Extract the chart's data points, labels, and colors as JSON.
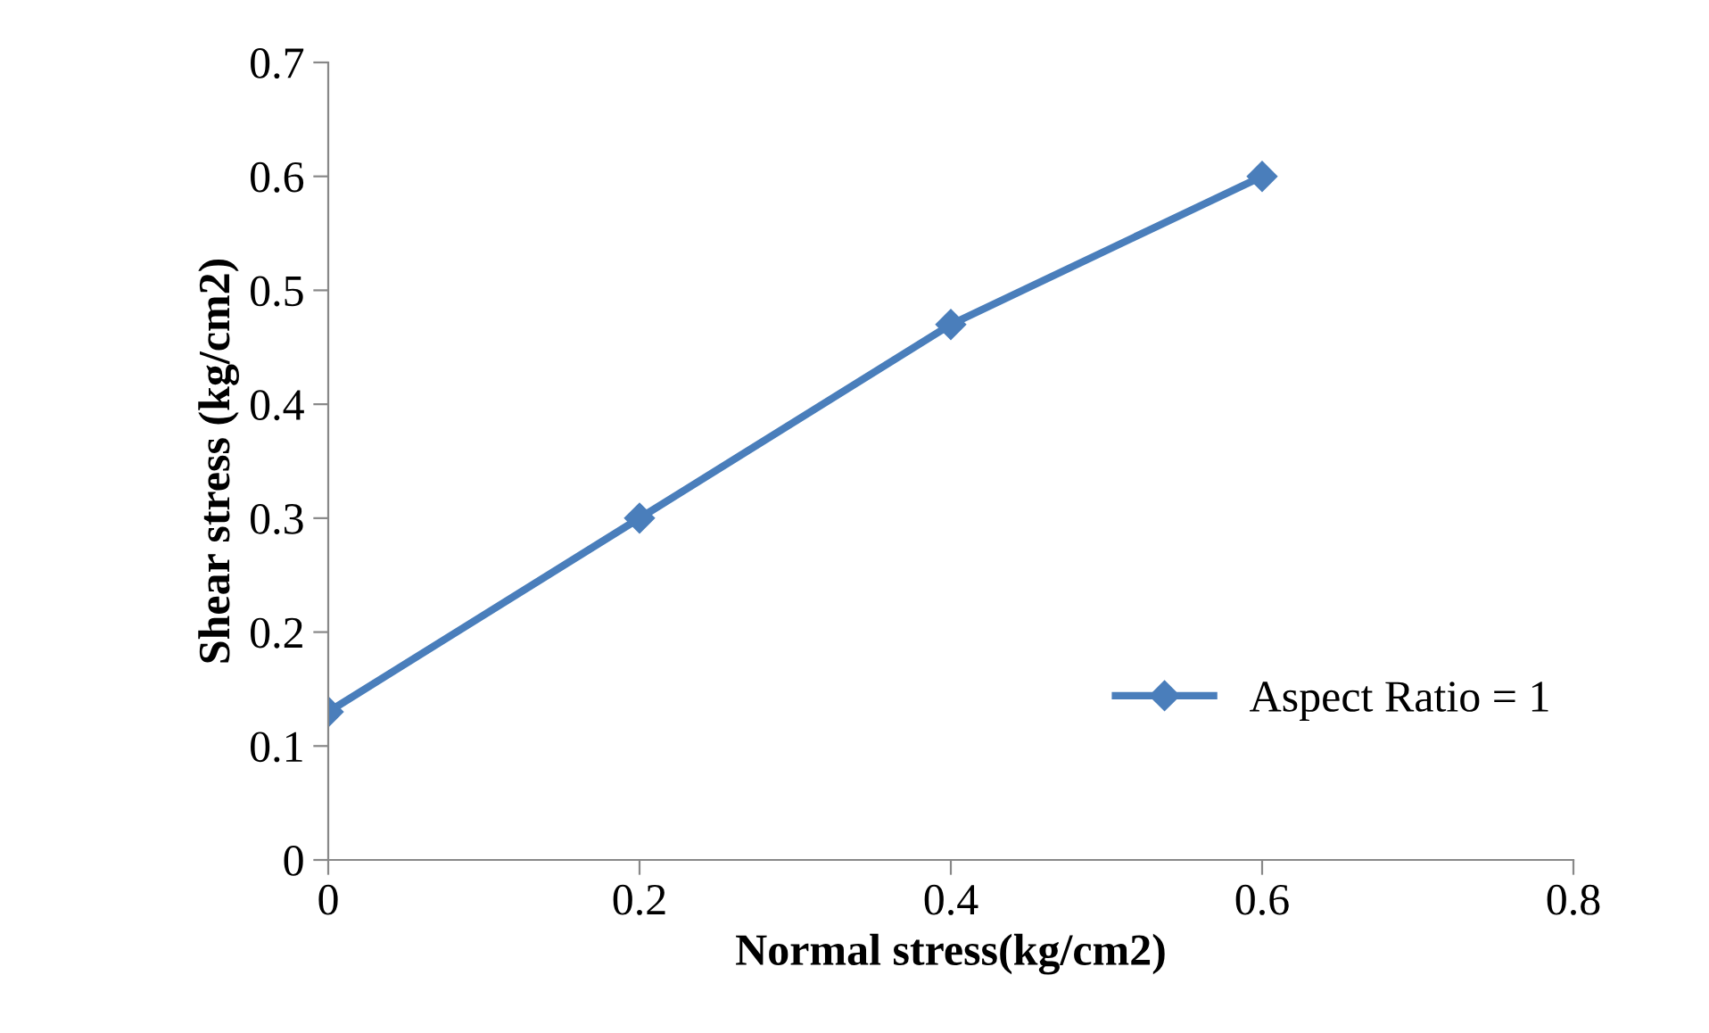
{
  "chart_data": {
    "type": "line",
    "xlabel": "Normal stress(kg/cm2)",
    "ylabel": "Shear stress (kg/cm2)",
    "x": [
      0,
      0.2,
      0.4,
      0.6
    ],
    "series": [
      {
        "name": "Aspect Ratio = 1",
        "color": "#4a7ebb",
        "values": [
          0.13,
          0.3,
          0.47,
          0.6
        ]
      }
    ],
    "xlim": [
      0,
      0.8
    ],
    "xticks": [
      0,
      0.2,
      0.4,
      0.6,
      0.8
    ],
    "ylim": [
      0,
      0.7
    ],
    "yticks": [
      0,
      0.1,
      0.2,
      0.3,
      0.4,
      0.5,
      0.6,
      0.7
    ],
    "marker": "diamond",
    "line_style": "solid",
    "legend": "right",
    "grid": false
  }
}
